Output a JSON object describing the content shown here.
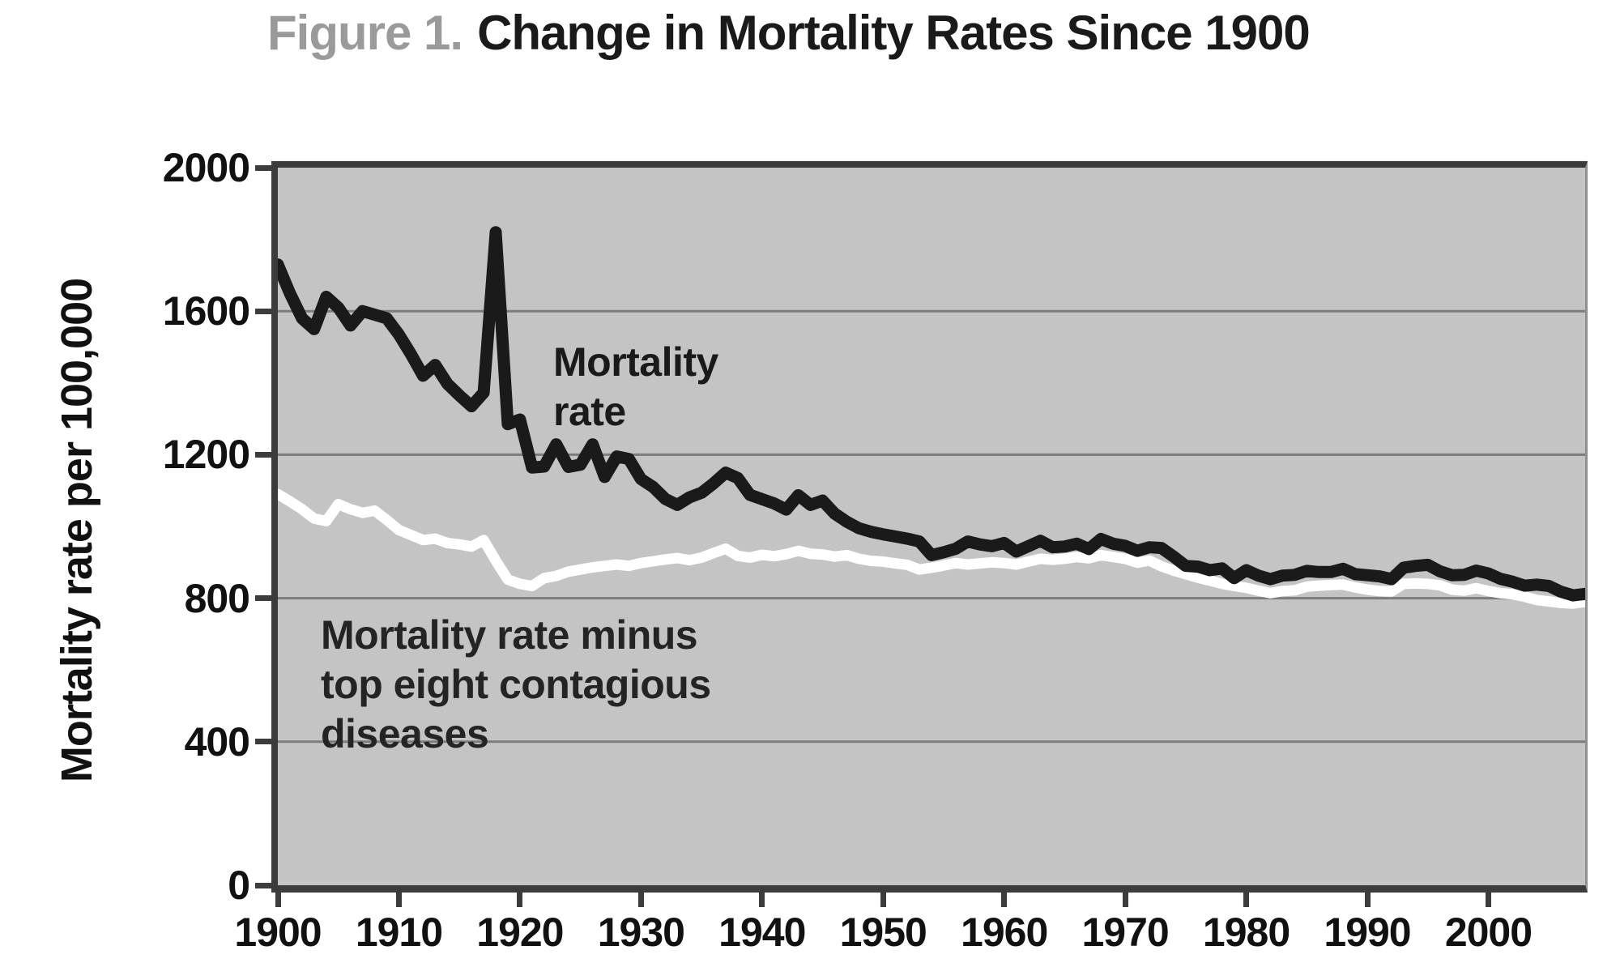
{
  "title": {
    "prefix": "Figure 1.",
    "text": "Change in Mortality Rates Since 1900"
  },
  "y_axis": {
    "label": "Mortality rate per 100,000",
    "ticks": [
      0,
      400,
      800,
      1200,
      1600,
      2000
    ],
    "grid_values": [
      400,
      800,
      1200,
      1600
    ]
  },
  "x_axis": {
    "ticks": [
      1900,
      1910,
      1920,
      1930,
      1940,
      1950,
      1960,
      1970,
      1980,
      1990,
      2000
    ]
  },
  "annotations": {
    "black_line_label": "Mortality\nrate",
    "white_line_label": "Mortality rate minus\ntop eight contagious\ndiseases"
  },
  "colors": {
    "plot_background": "#c4c4c4",
    "gridline": "#7c7c7c",
    "axis_frame": "#3c3c3c",
    "mortality_line": "#1a1a1a",
    "minus_contagious_line": "#ffffff",
    "title_prefix": "#9a9a9a",
    "text": "#1a1a1a"
  },
  "chart_data": {
    "type": "line",
    "title": "Figure 1. Change in Mortality Rates Since 1900",
    "xlabel": "",
    "ylabel": "Mortality rate per 100,000",
    "xlim": [
      1900,
      2008
    ],
    "ylim": [
      0,
      2000
    ],
    "grid": true,
    "legend_position": "inline-annotations",
    "background_note": "plot area shaded gray",
    "x": [
      1900,
      1901,
      1902,
      1903,
      1904,
      1905,
      1906,
      1907,
      1908,
      1909,
      1910,
      1911,
      1912,
      1913,
      1914,
      1915,
      1916,
      1917,
      1918,
      1919,
      1920,
      1921,
      1922,
      1923,
      1924,
      1925,
      1926,
      1927,
      1928,
      1929,
      1930,
      1931,
      1932,
      1933,
      1934,
      1935,
      1936,
      1937,
      1938,
      1939,
      1940,
      1941,
      1942,
      1943,
      1944,
      1945,
      1946,
      1947,
      1948,
      1949,
      1950,
      1951,
      1952,
      1953,
      1954,
      1955,
      1956,
      1957,
      1958,
      1959,
      1960,
      1961,
      1962,
      1963,
      1964,
      1965,
      1966,
      1967,
      1968,
      1969,
      1970,
      1971,
      1972,
      1973,
      1974,
      1975,
      1976,
      1977,
      1978,
      1979,
      1980,
      1981,
      1982,
      1983,
      1984,
      1985,
      1986,
      1987,
      1988,
      1989,
      1990,
      1991,
      1992,
      1993,
      1994,
      1995,
      1996,
      1997,
      1998,
      1999,
      2000,
      2001,
      2002,
      2003,
      2004,
      2005,
      2006,
      2007,
      2008
    ],
    "series": [
      {
        "name": "Mortality rate",
        "color": "#1a1a1a",
        "values": [
          1730,
          1650,
          1580,
          1550,
          1640,
          1610,
          1560,
          1600,
          1590,
          1580,
          1535,
          1480,
          1420,
          1450,
          1398,
          1365,
          1335,
          1373,
          1820,
          1285,
          1298,
          1164,
          1167,
          1229,
          1166,
          1172,
          1229,
          1138,
          1195,
          1188,
          1132,
          1110,
          1077,
          1060,
          1081,
          1094,
          1120,
          1150,
          1135,
          1088,
          1076,
          1064,
          1047,
          1087,
          1060,
          1072,
          1036,
          1013,
          995,
          985,
          978,
          972,
          966,
          958,
          920,
          928,
          938,
          958,
          950,
          945,
          954,
          930,
          945,
          960,
          942,
          944,
          952,
          937,
          965,
          952,
          946,
          932,
          942,
          940,
          916,
          890,
          888,
          878,
          883,
          856,
          878,
          863,
          853,
          863,
          865,
          876,
          873,
          873,
          882,
          867,
          864,
          861,
          853,
          885,
          890,
          893,
          875,
          864,
          865,
          877,
          869,
          854,
          846,
          835,
          838,
          834,
          818,
          808,
          812
        ]
      },
      {
        "name": "Mortality rate minus top eight contagious diseases",
        "color": "#ffffff",
        "values": [
          1090,
          1070,
          1048,
          1022,
          1015,
          1062,
          1048,
          1038,
          1044,
          1018,
          990,
          976,
          962,
          966,
          954,
          950,
          944,
          962,
          905,
          852,
          840,
          834,
          856,
          862,
          874,
          880,
          886,
          890,
          894,
          890,
          898,
          903,
          908,
          912,
          906,
          913,
          926,
          938,
          918,
          913,
          921,
          917,
          923,
          932,
          924,
          922,
          916,
          920,
          910,
          904,
          902,
          897,
          893,
          880,
          885,
          891,
          898,
          894,
          897,
          900,
          898,
          894,
          902,
          910,
          907,
          910,
          915,
          911,
          920,
          915,
          910,
          899,
          905,
          889,
          877,
          867,
          857,
          849,
          840,
          834,
          829,
          821,
          814,
          820,
          822,
          832,
          835,
          837,
          838,
          830,
          824,
          820,
          819,
          840,
          841,
          840,
          836,
          824,
          821,
          828,
          820,
          814,
          811,
          804,
          795,
          791,
          787,
          785,
          790
        ]
      }
    ]
  }
}
